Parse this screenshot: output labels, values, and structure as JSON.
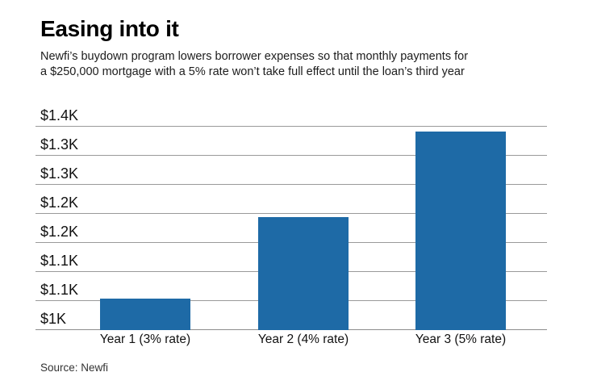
{
  "header": {
    "title": "Easing into it",
    "subtitle_line1": "Newfi’s buydown program lowers borrower expenses so that monthly payments for",
    "subtitle_line2": "a $250,000 mortgage with a 5% rate won’t take full effect until the loan’s third year"
  },
  "chart_data": {
    "type": "bar",
    "title": "Easing into it",
    "subtitle": "Newfi’s buydown program lowers borrower expenses so that monthly payments for a $250,000 mortgage with a 5% rate won’t take full effect until the loan’s third year",
    "categories": [
      "Year 1 (3% rate)",
      "Year 2 (4% rate)",
      "Year 3 (5% rate)"
    ],
    "values": [
      1054,
      1194,
      1342
    ],
    "unit": "USD monthly payment",
    "xlabel": "",
    "ylabel": "",
    "ylim": [
      1000,
      1400
    ],
    "grid": true,
    "legend": false,
    "yticks": [
      {
        "value": 1000,
        "label": "$1K"
      },
      {
        "value": 1050,
        "label": "$1.1K"
      },
      {
        "value": 1100,
        "label": "$1.1K"
      },
      {
        "value": 1150,
        "label": "$1.2K"
      },
      {
        "value": 1200,
        "label": "$1.2K"
      },
      {
        "value": 1250,
        "label": "$1.3K"
      },
      {
        "value": 1300,
        "label": "$1.3K"
      },
      {
        "value": 1350,
        "label": "$1.4K"
      }
    ],
    "colors": {
      "bar": "#1e6aa6",
      "gridline": "#9a9a9a",
      "axis_line": "#8c8c8c",
      "text": "#111111"
    }
  },
  "footer": {
    "source": "Source: Newfi"
  }
}
